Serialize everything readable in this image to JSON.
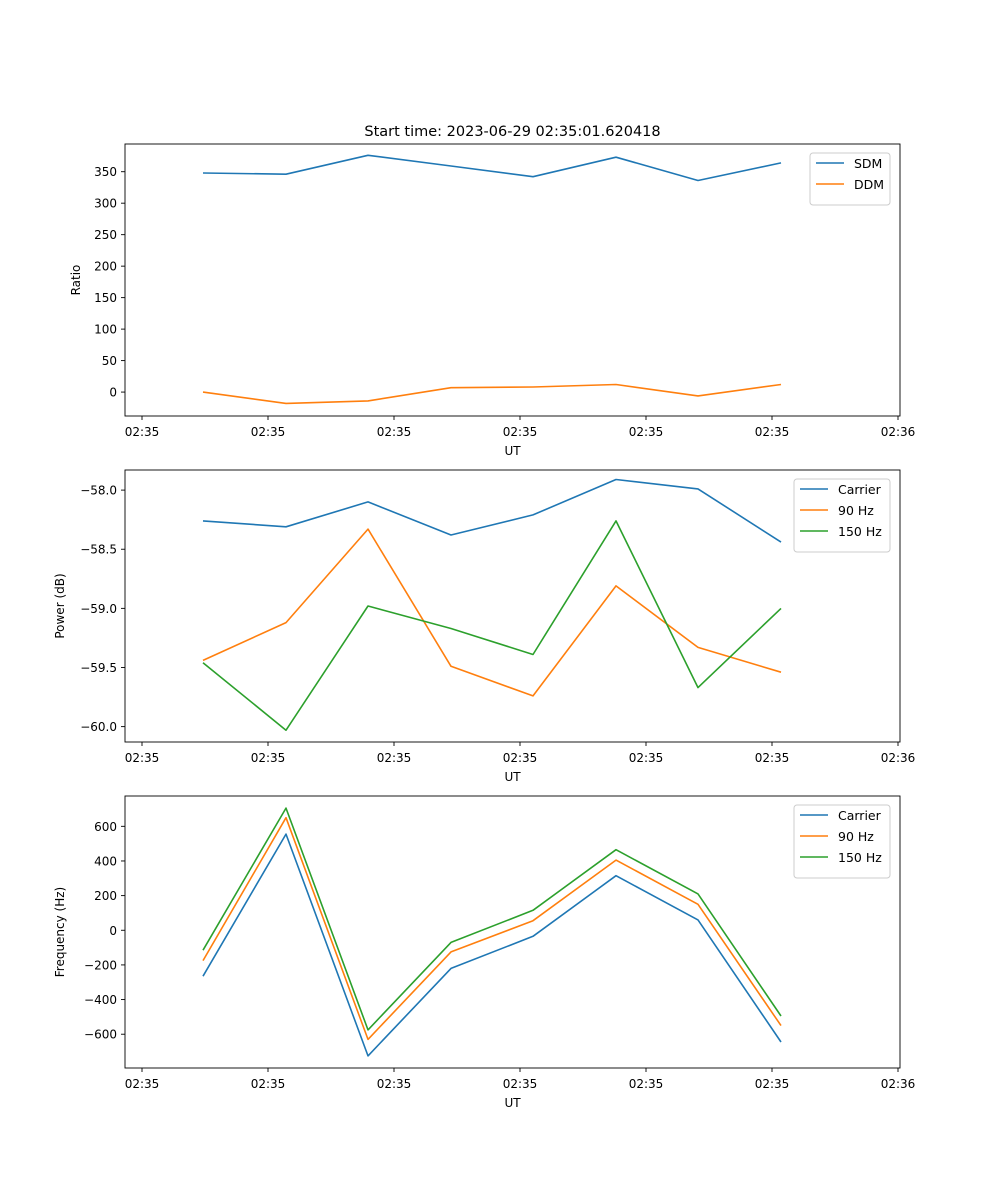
{
  "figure": {
    "title": "Start time: 2023-06-29 02:35:01.620418"
  },
  "chart_data": [
    {
      "type": "line",
      "xlabel": "UT",
      "ylabel": "Ratio",
      "xticks": [
        "02:35",
        "02:35",
        "02:35",
        "02:35",
        "02:35",
        "02:35",
        "02:36"
      ],
      "yticks": [
        "0",
        "50",
        "100",
        "150",
        "200",
        "250",
        "300",
        "350"
      ],
      "ylim": [
        -38,
        394
      ],
      "legend_position": "top-right",
      "grid": false,
      "series": [
        {
          "name": "SDM",
          "color": "#1f77b4",
          "values": [
            348,
            346,
            376,
            359,
            342,
            373,
            336,
            364
          ]
        },
        {
          "name": "DDM",
          "color": "#ff7f0e",
          "values": [
            0,
            -18,
            -14,
            7,
            8,
            12,
            -6,
            12
          ]
        }
      ]
    },
    {
      "type": "line",
      "xlabel": "UT",
      "ylabel": "Power (dB)",
      "xticks": [
        "02:35",
        "02:35",
        "02:35",
        "02:35",
        "02:35",
        "02:35",
        "02:36"
      ],
      "yticks": [
        "−60.0",
        "−59.5",
        "−59.0",
        "−58.5",
        "−58.0"
      ],
      "ylim": [
        -60.13,
        -57.83
      ],
      "legend_position": "top-right",
      "grid": false,
      "series": [
        {
          "name": "Carrier",
          "color": "#1f77b4",
          "values": [
            -58.26,
            -58.31,
            -58.1,
            -58.38,
            -58.21,
            -57.91,
            -57.99,
            -58.44
          ]
        },
        {
          "name": "90 Hz",
          "color": "#ff7f0e",
          "values": [
            -59.44,
            -59.12,
            -58.33,
            -59.49,
            -59.74,
            -58.81,
            -59.33,
            -59.54
          ]
        },
        {
          "name": "150 Hz",
          "color": "#2ca02c",
          "values": [
            -59.46,
            -60.03,
            -58.98,
            -59.17,
            -59.39,
            -58.26,
            -59.67,
            -59.0
          ]
        }
      ]
    },
    {
      "type": "line",
      "xlabel": "UT",
      "ylabel": "Frequency (Hz)",
      "xticks": [
        "02:35",
        "02:35",
        "02:35",
        "02:35",
        "02:35",
        "02:35",
        "02:36"
      ],
      "yticks": [
        "−600",
        "−400",
        "−200",
        "0",
        "200",
        "400",
        "600"
      ],
      "ylim": [
        -795,
        775
      ],
      "legend_position": "top-right",
      "grid": false,
      "series": [
        {
          "name": "Carrier",
          "color": "#1f77b4",
          "values": [
            -265,
            555,
            -725,
            -220,
            -35,
            315,
            60,
            -645
          ]
        },
        {
          "name": "90 Hz",
          "color": "#ff7f0e",
          "values": [
            -175,
            650,
            -630,
            -125,
            55,
            405,
            150,
            -550
          ]
        },
        {
          "name": "150 Hz",
          "color": "#2ca02c",
          "values": [
            -115,
            705,
            -575,
            -70,
            115,
            465,
            210,
            -495
          ]
        }
      ]
    }
  ]
}
